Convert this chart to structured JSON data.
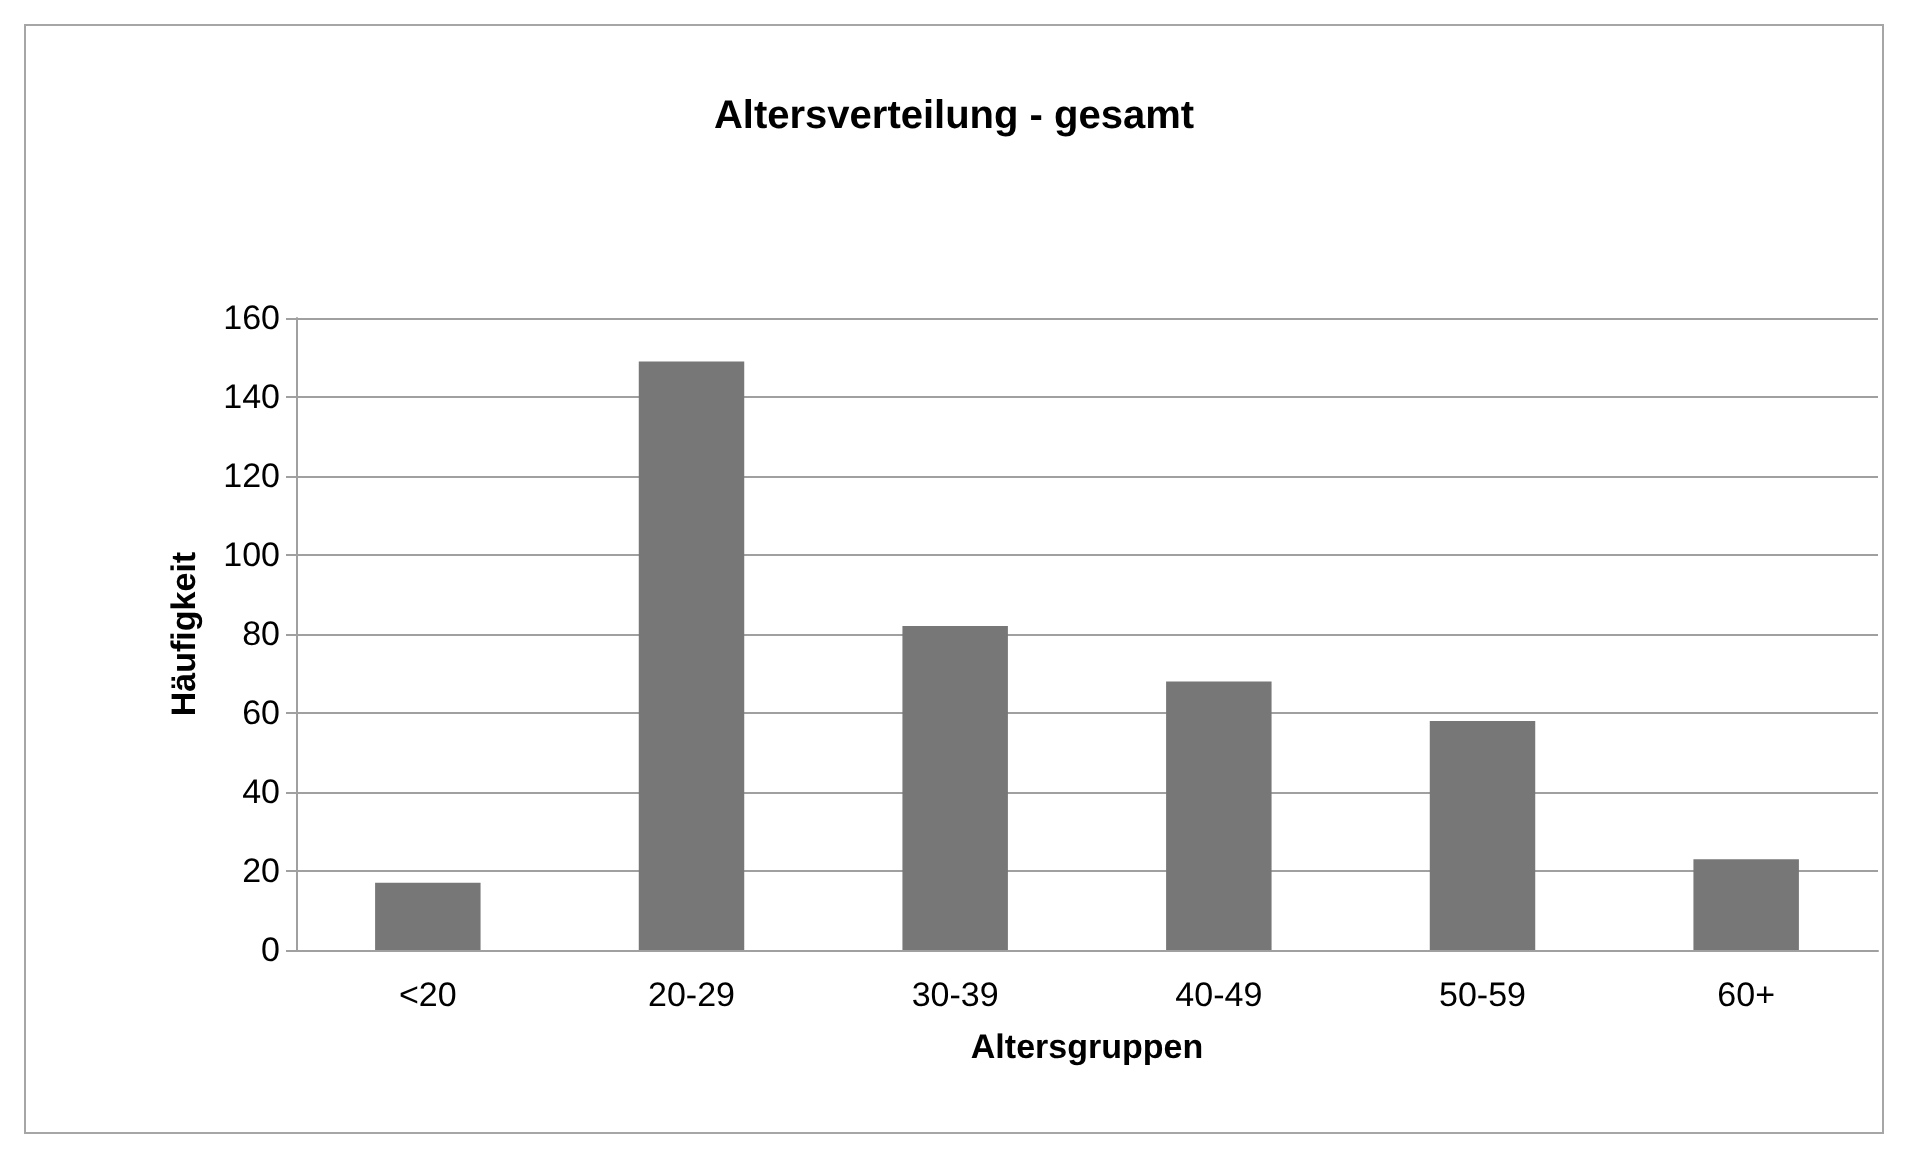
{
  "chart_data": {
    "type": "bar",
    "title": "Altersverteilung - gesamt",
    "xlabel": "Altersgruppen",
    "ylabel": "Häufigkeit",
    "categories": [
      "<20",
      "20-29",
      "30-39",
      "40-49",
      "50-59",
      "60+"
    ],
    "values": [
      17,
      149,
      82,
      68,
      58,
      23
    ],
    "color": "#777777",
    "ylim": [
      0,
      160
    ],
    "yticks": [
      0,
      20,
      40,
      60,
      80,
      100,
      120,
      140,
      160
    ],
    "grid": "y"
  }
}
